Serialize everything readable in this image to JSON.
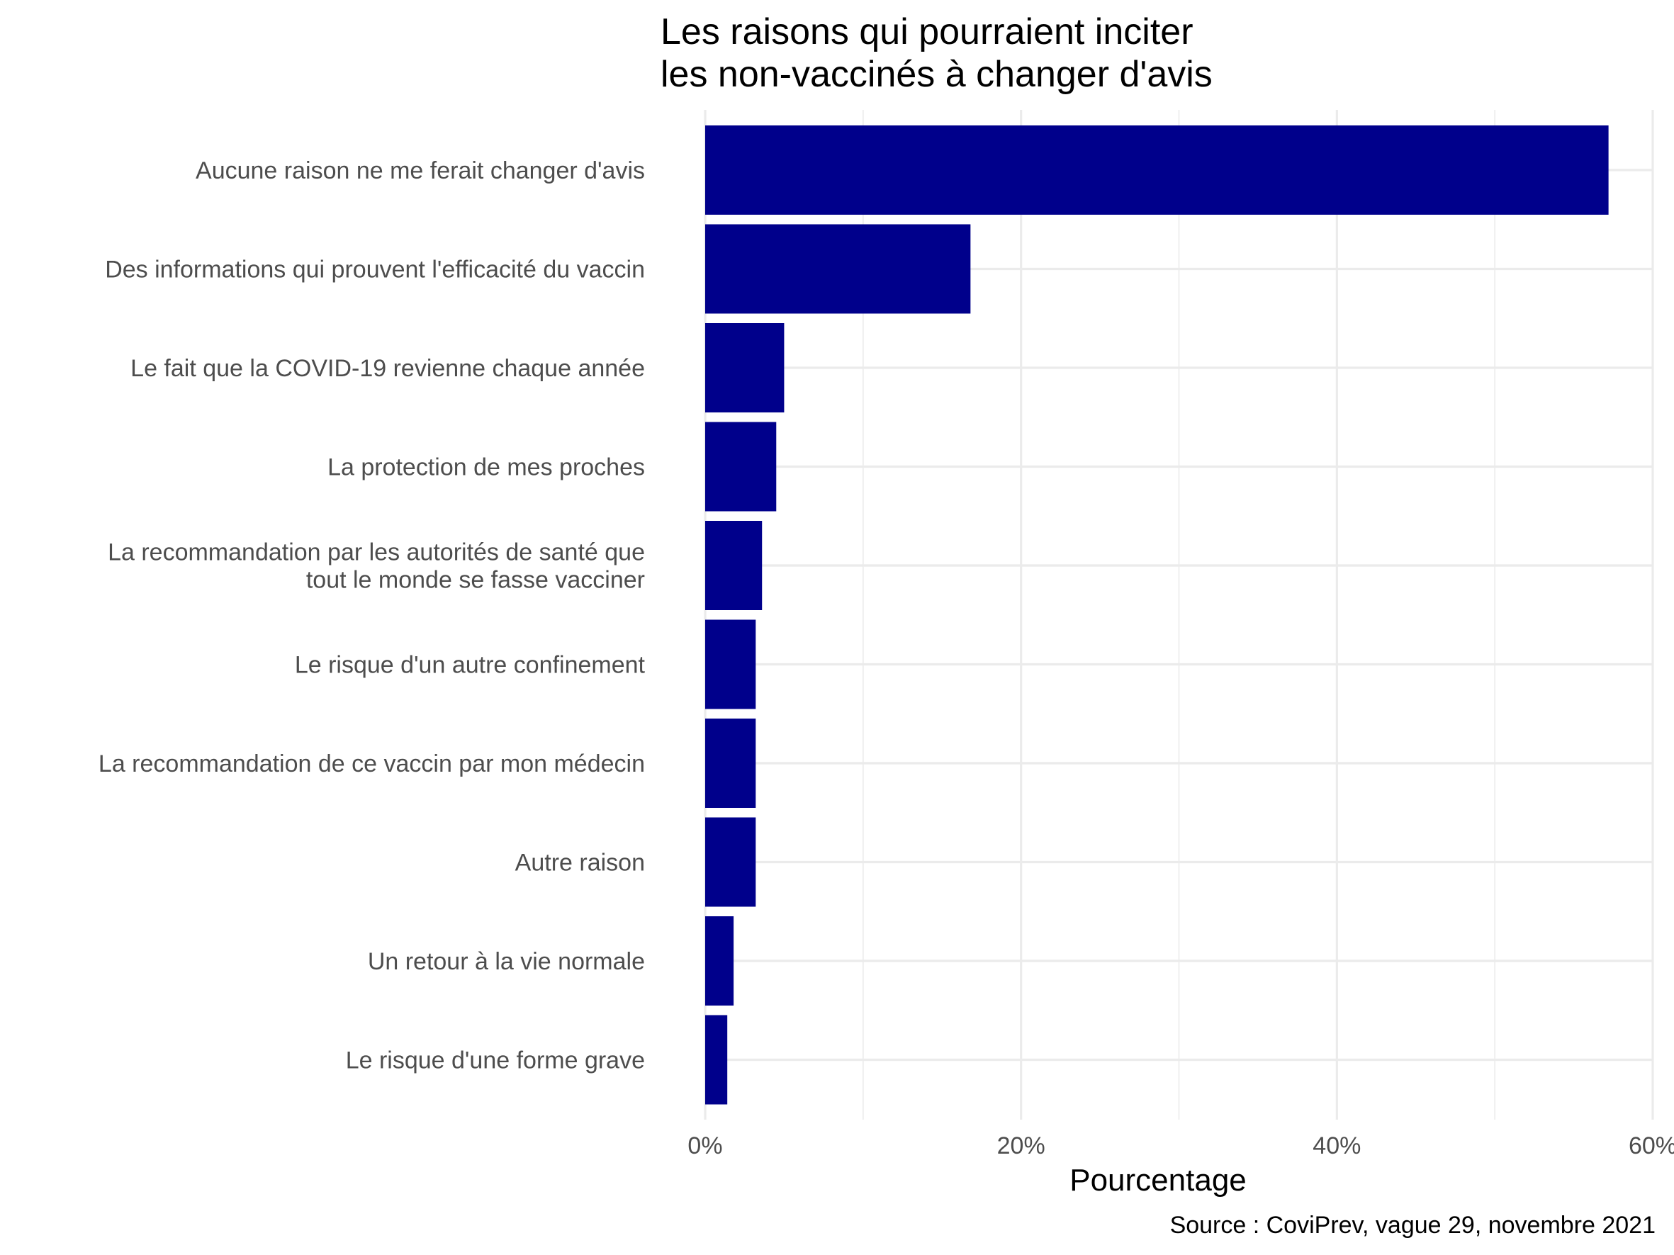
{
  "title_lines": [
    "Les raisons qui pourraient inciter",
    "les non-vaccinés à changer d'avis"
  ],
  "caption": "Source : CoviPrev, vague 29, novembre 2021",
  "chart_data": {
    "type": "bar",
    "orientation": "horizontal",
    "title": "Les raisons qui pourraient inciter les non-vaccinés à changer d'avis",
    "xlabel": "Pourcentage",
    "ylabel": "",
    "categories": [
      "Aucune raison ne me ferait changer d'avis",
      "Des informations qui prouvent l'efficacité du vaccin",
      "Le fait que la COVID-19 revienne chaque année",
      "La protection de mes proches",
      "La recommandation par les autorités de santé que tout le monde se fasse vacciner",
      "Le risque d'un autre confinement",
      "La recommandation de ce vaccin par mon médecin",
      "Autre raison",
      "Un retour à la vie normale",
      "Le risque d'une forme grave"
    ],
    "category_label_lines": [
      [
        "Aucune raison ne me ferait changer d'avis"
      ],
      [
        "Des informations qui prouvent l'efficacité du vaccin"
      ],
      [
        "Le fait que la COVID-19 revienne chaque année"
      ],
      [
        "La protection de mes proches"
      ],
      [
        "La recommandation par les autorités de santé que",
        "tout le monde se fasse vacciner"
      ],
      [
        "Le risque d'un autre confinement"
      ],
      [
        "La recommandation de ce vaccin par mon médecin"
      ],
      [
        "Autre raison"
      ],
      [
        "Un retour à la vie normale"
      ],
      [
        "Le risque d'une forme grave"
      ]
    ],
    "values": [
      57.2,
      16.8,
      5.0,
      4.5,
      3.6,
      3.2,
      3.2,
      3.2,
      1.8,
      1.4
    ],
    "unit": "%",
    "xlim": [
      0,
      60
    ],
    "xticks": [
      0,
      20,
      40,
      60
    ],
    "xtick_labels": [
      "0%",
      "20%",
      "40%",
      "60%"
    ],
    "grid": true,
    "bar_color": "#00008b"
  }
}
